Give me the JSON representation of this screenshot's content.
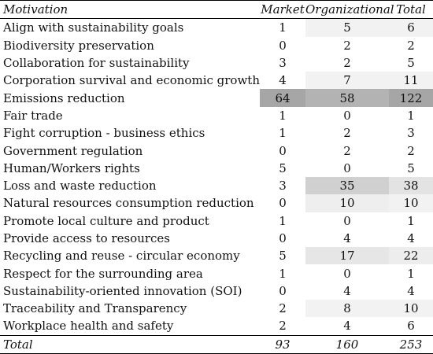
{
  "table": {
    "headers": {
      "motivation": "Motivation",
      "market": "Market",
      "organizational": "Organizational",
      "total": "Total"
    },
    "rows": [
      {
        "motivation": "Align with sustainability goals",
        "market": "1",
        "organizational": "5",
        "total": "6",
        "bg": [
          "#ffffff",
          "#f2f2f2",
          "#f2f2f2"
        ]
      },
      {
        "motivation": "Biodiversity preservation",
        "market": "0",
        "organizational": "2",
        "total": "2",
        "bg": [
          "#ffffff",
          "#ffffff",
          "#ffffff"
        ]
      },
      {
        "motivation": "Collaboration for sustainability",
        "market": "3",
        "organizational": "2",
        "total": "5",
        "bg": [
          "#ffffff",
          "#ffffff",
          "#ffffff"
        ]
      },
      {
        "motivation": "Corporation survival and economic growth",
        "market": "4",
        "organizational": "7",
        "total": "11",
        "bg": [
          "#ffffff",
          "#f2f2f2",
          "#f2f2f2"
        ]
      },
      {
        "motivation": "Emissions reduction",
        "market": "64",
        "organizational": "58",
        "total": "122",
        "bg": [
          "#a6a6a6",
          "#b3b3b3",
          "#a6a6a6"
        ]
      },
      {
        "motivation": "Fair trade",
        "market": "1",
        "organizational": "0",
        "total": "1",
        "bg": [
          "#ffffff",
          "#ffffff",
          "#ffffff"
        ]
      },
      {
        "motivation": "Fight corruption - business ethics",
        "market": "1",
        "organizational": "2",
        "total": "3",
        "bg": [
          "#ffffff",
          "#ffffff",
          "#ffffff"
        ]
      },
      {
        "motivation": "Government regulation",
        "market": "0",
        "organizational": "2",
        "total": "2",
        "bg": [
          "#ffffff",
          "#ffffff",
          "#ffffff"
        ]
      },
      {
        "motivation": "Human/Workers rights",
        "market": "5",
        "organizational": "0",
        "total": "5",
        "bg": [
          "#ffffff",
          "#ffffff",
          "#ffffff"
        ]
      },
      {
        "motivation": "Loss and waste reduction",
        "market": "3",
        "organizational": "35",
        "total": "38",
        "bg": [
          "#ffffff",
          "#d0d0d0",
          "#e3e3e3"
        ]
      },
      {
        "motivation": "Natural resources consumption reduction",
        "market": "0",
        "organizational": "10",
        "total": "10",
        "bg": [
          "#ffffff",
          "#eeeeee",
          "#f2f2f2"
        ]
      },
      {
        "motivation": "Promote local culture and product",
        "market": "1",
        "organizational": "0",
        "total": "1",
        "bg": [
          "#ffffff",
          "#ffffff",
          "#ffffff"
        ]
      },
      {
        "motivation": "Provide access to resources",
        "market": "0",
        "organizational": "4",
        "total": "4",
        "bg": [
          "#ffffff",
          "#ffffff",
          "#ffffff"
        ]
      },
      {
        "motivation": "Recycling and reuse - circular economy",
        "market": "5",
        "organizational": "17",
        "total": "22",
        "bg": [
          "#ffffff",
          "#e6e6e6",
          "#ededed"
        ]
      },
      {
        "motivation": "Respect for the surrounding area",
        "market": "1",
        "organizational": "0",
        "total": "1",
        "bg": [
          "#ffffff",
          "#ffffff",
          "#ffffff"
        ]
      },
      {
        "motivation": "Sustainability-oriented innovation (SOI)",
        "market": "0",
        "organizational": "4",
        "total": "4",
        "bg": [
          "#ffffff",
          "#ffffff",
          "#ffffff"
        ]
      },
      {
        "motivation": "Traceability and Transparency",
        "market": "2",
        "organizational": "8",
        "total": "10",
        "bg": [
          "#ffffff",
          "#f2f2f2",
          "#f2f2f2"
        ]
      },
      {
        "motivation": "Workplace health and safety",
        "market": "2",
        "organizational": "4",
        "total": "6",
        "bg": [
          "#ffffff",
          "#ffffff",
          "#ffffff"
        ]
      }
    ],
    "total_row": {
      "label": "Total",
      "market": "93",
      "organizational": "160",
      "total": "253"
    }
  }
}
